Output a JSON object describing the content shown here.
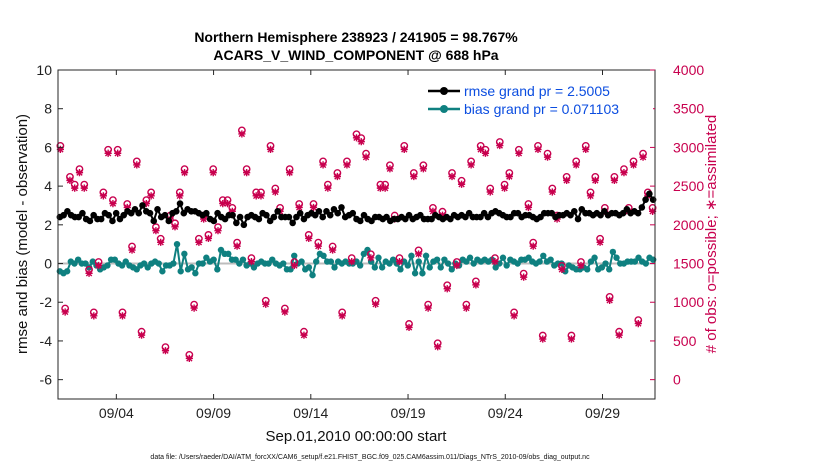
{
  "chart_data": {
    "type": "line",
    "title_line1": "Northern Hemisphere 238923 / 241905 = 98.767%",
    "title_line2": "ACARS_V_WIND_COMPONENT @ 688 hPa",
    "xlabel": "Sep.01,2010 00:00:00 start",
    "ylabel_left": "rmse and bias (model - observation)",
    "ylabel_right": "# of obs: o=possible; ∗=assimilated",
    "x_range_days": [
      0.0,
      30.7
    ],
    "ylim_left": [
      -7,
      10
    ],
    "ylim_right": [
      -250,
      4000
    ],
    "x_ticks": [
      {
        "day": 3.0,
        "label": "09/04"
      },
      {
        "day": 8.0,
        "label": "09/09"
      },
      {
        "day": 13.0,
        "label": "09/14"
      },
      {
        "day": 18.0,
        "label": "09/19"
      },
      {
        "day": 23.0,
        "label": "09/24"
      },
      {
        "day": 28.0,
        "label": "09/29"
      }
    ],
    "y_ticks_left": [
      10,
      8,
      6,
      4,
      2,
      0,
      -2,
      -4,
      -6
    ],
    "y_ticks_right": [
      4000,
      3500,
      3000,
      2500,
      2000,
      1500,
      1000,
      500,
      0
    ],
    "legend": [
      {
        "label": "rmse grand pr = 2.5005",
        "color": "#000000"
      },
      {
        "label": "bias grand pr = 0.071103",
        "color": "#0f8080"
      }
    ],
    "series": [
      {
        "name": "rmse",
        "color": "#000000",
        "values": [
          2.4,
          2.5,
          2.7,
          2.5,
          2.4,
          2.4,
          2.6,
          2.3,
          2.2,
          2.5,
          2.3,
          2.3,
          2.6,
          2.5,
          2.2,
          2.6,
          2.3,
          2.5,
          2.7,
          2.6,
          2.8,
          2.6,
          3.0,
          2.7,
          2.6,
          2.2,
          2.8,
          2.4,
          2.5,
          2.2,
          2.6,
          2.7,
          3.1,
          2.6,
          2.8,
          2.7,
          2.7,
          2.6,
          2.5,
          2.6,
          2.3,
          2.2,
          2.6,
          2.4,
          2.3,
          2.5,
          2.5,
          2.1,
          2.4,
          2.0,
          2.4,
          2.5,
          2.4,
          2.3,
          2.6,
          2.5,
          2.2,
          2.4,
          2.7,
          2.4,
          2.4,
          2.4,
          2.1,
          2.4,
          2.6,
          2.3,
          2.5,
          2.6,
          2.5,
          2.7,
          2.4,
          2.7,
          2.5,
          2.8,
          2.6,
          2.9,
          2.4,
          2.5,
          2.6,
          2.3,
          2.2,
          2.5,
          2.3,
          2.2,
          2.4,
          2.4,
          2.3,
          2.4,
          2.2,
          2.3,
          2.3,
          2.4,
          2.3,
          2.5,
          2.3,
          2.4,
          2.5,
          2.3,
          2.3,
          2.3,
          2.5,
          2.4,
          2.3,
          2.4,
          2.3,
          2.5,
          2.4,
          2.5,
          2.4,
          2.6,
          2.4,
          2.4,
          2.4,
          2.6,
          2.4,
          2.6,
          2.7,
          2.6,
          2.5,
          2.4,
          2.4,
          2.6,
          2.6,
          2.4,
          2.5,
          2.5,
          2.4,
          2.3,
          2.4,
          2.6,
          2.6,
          2.6,
          2.4,
          2.5,
          2.5,
          2.6,
          2.5,
          2.7,
          2.3,
          2.8,
          2.6,
          2.6,
          2.5,
          2.6,
          2.5,
          2.7,
          2.5,
          2.6,
          2.6,
          2.5,
          2.6,
          2.8,
          2.6,
          2.7,
          2.6,
          2.9,
          3.3,
          3.6,
          3.3
        ]
      },
      {
        "name": "bias",
        "color": "#0f8080",
        "values": [
          -0.4,
          -0.5,
          -0.4,
          0.1,
          0.0,
          0.2,
          0.0,
          0.0,
          -0.2,
          0.1,
          -0.1,
          -0.3,
          -0.2,
          -0.1,
          0.2,
          0.2,
          0.0,
          -0.1,
          0.1,
          -0.1,
          -0.2,
          -0.3,
          -0.1,
          0.0,
          -0.2,
          0.0,
          0.1,
          0.0,
          -0.4,
          -0.1,
          -0.1,
          0.0,
          1.0,
          -0.4,
          0.5,
          -0.3,
          -0.2,
          -0.5,
          0.0,
          0.0,
          0.3,
          0.1,
          0.2,
          -0.3,
          0.7,
          0.5,
          0.5,
          0.2,
          0.2,
          0.0,
          0.2,
          -0.1,
          0.0,
          -0.2,
          0.0,
          0.1,
          0.0,
          0.0,
          0.2,
          0.0,
          -0.1,
          0.0,
          -0.3,
          -0.3,
          0.4,
          0.0,
          0.1,
          -0.3,
          -0.2,
          -0.6,
          0.1,
          0.5,
          0.4,
          0.1,
          0.1,
          -0.2,
          0.1,
          0.0,
          0.1,
          0.0,
          0.0,
          0.1,
          -0.1,
          0.5,
          0.7,
          0.1,
          -0.2,
          0.3,
          -0.2,
          0.1,
          0.0,
          0.2,
          0.0,
          -0.3,
          0.1,
          -0.1,
          0.4,
          -0.5,
          0.1,
          -0.5,
          0.4,
          -0.2,
          0.1,
          0.2,
          -0.2,
          0.2,
          0.0,
          -0.3,
          0.0,
          -0.1,
          0.2,
          0.1,
          0.3,
          0.0,
          0.2,
          0.1,
          0.2,
          0.1,
          0.2,
          -0.2,
          0.0,
          0.3,
          -0.1,
          0.2,
          0.1,
          0.0,
          0.2,
          0.2,
          0.3,
          0.1,
          0.0,
          0.1,
          0.4,
          0.1,
          0.2,
          -0.1,
          0.0,
          0.0,
          -0.4,
          -0.1,
          -0.2,
          -0.3,
          -0.3,
          -0.2,
          -0.3,
          0.1,
          0.3,
          -0.3,
          -0.2,
          0.0,
          -0.3,
          0.6,
          0.3,
          0.0,
          0.0,
          0.1,
          0.1,
          0.1,
          0.3,
          0.1,
          0.0,
          0.3,
          0.2
        ]
      },
      {
        "name": "# possible / assimilated",
        "color": "#c8004e",
        "values": [
          3000,
          900,
          2600,
          2500,
          2700,
          2500,
          1400,
          850,
          1500,
          2400,
          2950,
          2300,
          2950,
          850,
          2250,
          1700,
          2800,
          600,
          2300,
          2400,
          1950,
          1800,
          400,
          2100,
          2000,
          2400,
          2700,
          300,
          950,
          1800,
          2100,
          1850,
          2700,
          1950,
          2300,
          2300,
          2200,
          1750,
          3200,
          2700,
          1550,
          2400,
          2400,
          1000,
          3000,
          2450,
          2200,
          900,
          2700,
          1500,
          2250,
          600,
          1850,
          2250,
          1750,
          2800,
          2500,
          1700,
          2650,
          850,
          2800,
          1550,
          3150,
          3100,
          2900,
          1600,
          1000,
          2500,
          2500,
          2750,
          2100,
          1550,
          3000,
          700,
          2650,
          1650,
          2750,
          950,
          2200,
          450,
          2150,
          1200,
          2650,
          1500,
          2550,
          950,
          2800,
          1250,
          3000,
          2950,
          2450,
          1550,
          3050,
          2500,
          2650,
          850,
          2950,
          1350,
          2250,
          1750,
          3000,
          550,
          2900,
          2450,
          2100,
          1450,
          2600,
          550,
          2800,
          1500,
          3000,
          2400,
          2600,
          1800,
          2200,
          1050,
          2600,
          600,
          2700,
          2200,
          2800,
          750,
          2900,
          2400,
          2200
        ]
      }
    ]
  },
  "footer": "data file: /Users/raeder/DAI/ATM_forcXX/CAM6_setup/f.e21.FHIST_BGC.f09_025.CAM6assim.011/Diags_NTrS_2010-09/obs_diag_output.nc"
}
